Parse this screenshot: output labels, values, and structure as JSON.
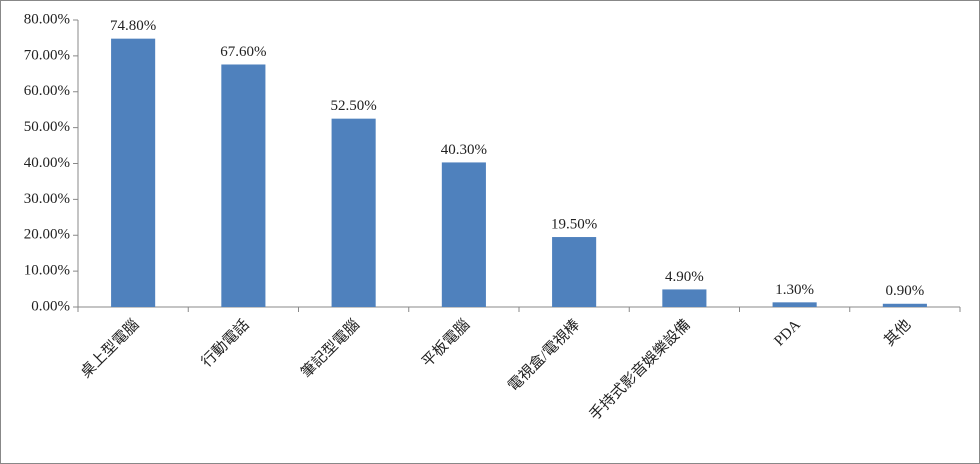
{
  "chart_data": {
    "type": "bar",
    "categories": [
      "桌上型電腦",
      "行動電話",
      "筆記型電腦",
      "平板電腦",
      "電視盒/電視棒",
      "手持式影音娛樂設備",
      "PDA",
      "其他"
    ],
    "values": [
      74.8,
      67.6,
      52.5,
      40.3,
      19.5,
      4.9,
      1.3,
      0.9
    ],
    "value_labels": [
      "74.80%",
      "67.60%",
      "52.50%",
      "40.30%",
      "19.50%",
      "4.90%",
      "1.30%",
      "0.90%"
    ],
    "color": "#4f81bd",
    "ylim": [
      0,
      80
    ],
    "yticks": [
      {
        "value": 0,
        "label": "0.00%"
      },
      {
        "value": 10,
        "label": "10.00%"
      },
      {
        "value": 20,
        "label": "20.00%"
      },
      {
        "value": 30,
        "label": "30.00%"
      },
      {
        "value": 40,
        "label": "40.00%"
      },
      {
        "value": 50,
        "label": "50.00%"
      },
      {
        "value": 60,
        "label": "60.00%"
      },
      {
        "value": 70,
        "label": "70.00%"
      },
      {
        "value": 80,
        "label": "80.00%"
      }
    ],
    "grid": false
  }
}
